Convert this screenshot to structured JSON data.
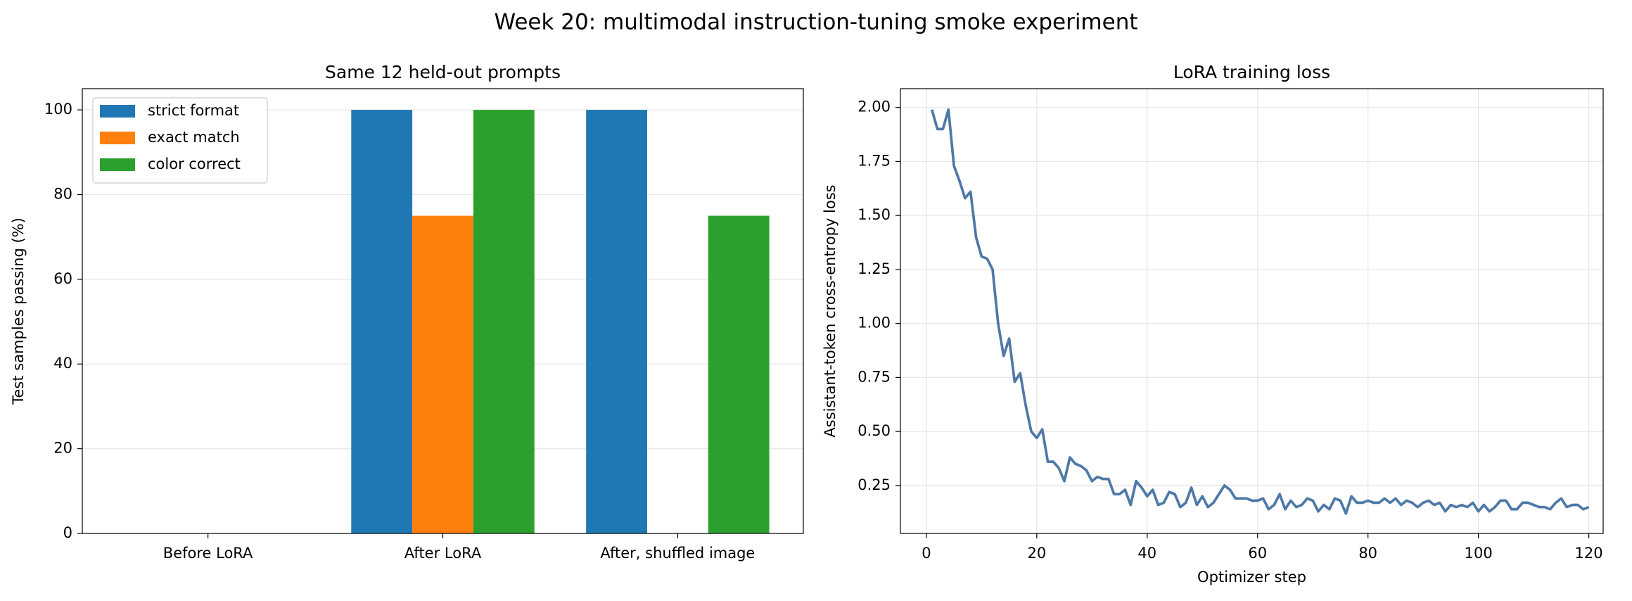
{
  "title": "Week 20: multimodal instruction-tuning smoke experiment",
  "chart_data": [
    {
      "type": "bar",
      "title": "Same 12 held-out prompts",
      "ylabel": "Test samples passing (%)",
      "categories": [
        "Before LoRA",
        "After LoRA",
        "After, shuffled image"
      ],
      "series": [
        {
          "name": "strict format",
          "color": "#1f77b4",
          "values": [
            0,
            100,
            100
          ]
        },
        {
          "name": "exact match",
          "color": "#ff7f0e",
          "values": [
            0,
            75,
            0
          ]
        },
        {
          "name": "color correct",
          "color": "#2ca02c",
          "values": [
            0,
            100,
            75
          ]
        }
      ],
      "ylim": [
        0,
        105
      ],
      "yticks": [
        0,
        20,
        40,
        60,
        80,
        100
      ],
      "grid": "y",
      "legend": "upper left"
    },
    {
      "type": "line",
      "title": "LoRA training loss",
      "xlabel": "Optimizer step",
      "ylabel": "Assistant-token cross-entropy loss",
      "x": [
        1,
        2,
        3,
        4,
        5,
        6,
        7,
        8,
        9,
        10,
        11,
        12,
        13,
        14,
        15,
        16,
        17,
        18,
        19,
        20,
        21,
        22,
        23,
        24,
        25,
        26,
        27,
        28,
        29,
        30,
        31,
        32,
        33,
        34,
        35,
        36,
        37,
        38,
        39,
        40,
        41,
        42,
        43,
        44,
        45,
        46,
        47,
        48,
        49,
        50,
        51,
        52,
        53,
        54,
        55,
        56,
        57,
        58,
        59,
        60,
        61,
        62,
        63,
        64,
        65,
        66,
        67,
        68,
        69,
        70,
        71,
        72,
        73,
        74,
        75,
        76,
        77,
        78,
        79,
        80,
        81,
        82,
        83,
        84,
        85,
        86,
        87,
        88,
        89,
        90,
        91,
        92,
        93,
        94,
        95,
        96,
        97,
        98,
        99,
        100,
        101,
        102,
        103,
        104,
        105,
        106,
        107,
        108,
        109,
        110,
        111,
        112,
        113,
        114,
        115,
        116,
        117,
        118,
        119,
        120
      ],
      "series": [
        {
          "name": "loss",
          "color": "#4e79a7",
          "values": [
            1.99,
            1.9,
            1.9,
            1.99,
            1.73,
            1.66,
            1.58,
            1.61,
            1.4,
            1.31,
            1.3,
            1.25,
            1.0,
            0.85,
            0.93,
            0.73,
            0.77,
            0.62,
            0.5,
            0.47,
            0.51,
            0.36,
            0.36,
            0.33,
            0.27,
            0.38,
            0.35,
            0.34,
            0.32,
            0.27,
            0.29,
            0.28,
            0.28,
            0.21,
            0.21,
            0.23,
            0.16,
            0.27,
            0.24,
            0.2,
            0.23,
            0.16,
            0.17,
            0.22,
            0.21,
            0.15,
            0.17,
            0.24,
            0.16,
            0.2,
            0.15,
            0.17,
            0.21,
            0.25,
            0.23,
            0.19,
            0.19,
            0.19,
            0.18,
            0.18,
            0.19,
            0.14,
            0.16,
            0.21,
            0.14,
            0.18,
            0.15,
            0.16,
            0.19,
            0.18,
            0.13,
            0.16,
            0.14,
            0.19,
            0.18,
            0.12,
            0.2,
            0.17,
            0.17,
            0.18,
            0.17,
            0.17,
            0.19,
            0.17,
            0.19,
            0.16,
            0.18,
            0.17,
            0.15,
            0.17,
            0.18,
            0.16,
            0.17,
            0.13,
            0.16,
            0.15,
            0.16,
            0.15,
            0.17,
            0.13,
            0.16,
            0.13,
            0.15,
            0.18,
            0.18,
            0.14,
            0.14,
            0.17,
            0.17,
            0.16,
            0.15,
            0.15,
            0.14,
            0.17,
            0.19,
            0.15,
            0.16,
            0.16,
            0.14,
            0.15
          ]
        }
      ],
      "xlim": [
        -4.7,
        122.6
      ],
      "xticks": [
        0,
        20,
        40,
        60,
        80,
        100,
        120
      ],
      "ylim": [
        0.028,
        2.087
      ],
      "yticks": [
        {
          "value": 0.25,
          "label": "0.25"
        },
        {
          "value": 0.5,
          "label": "0.50"
        },
        {
          "value": 0.75,
          "label": "0.75"
        },
        {
          "value": 1.0,
          "label": "1.00"
        },
        {
          "value": 1.25,
          "label": "1.25"
        },
        {
          "value": 1.5,
          "label": "1.50"
        },
        {
          "value": 1.75,
          "label": "1.75"
        },
        {
          "value": 2.0,
          "label": "2.00"
        }
      ],
      "grid": "both"
    }
  ]
}
